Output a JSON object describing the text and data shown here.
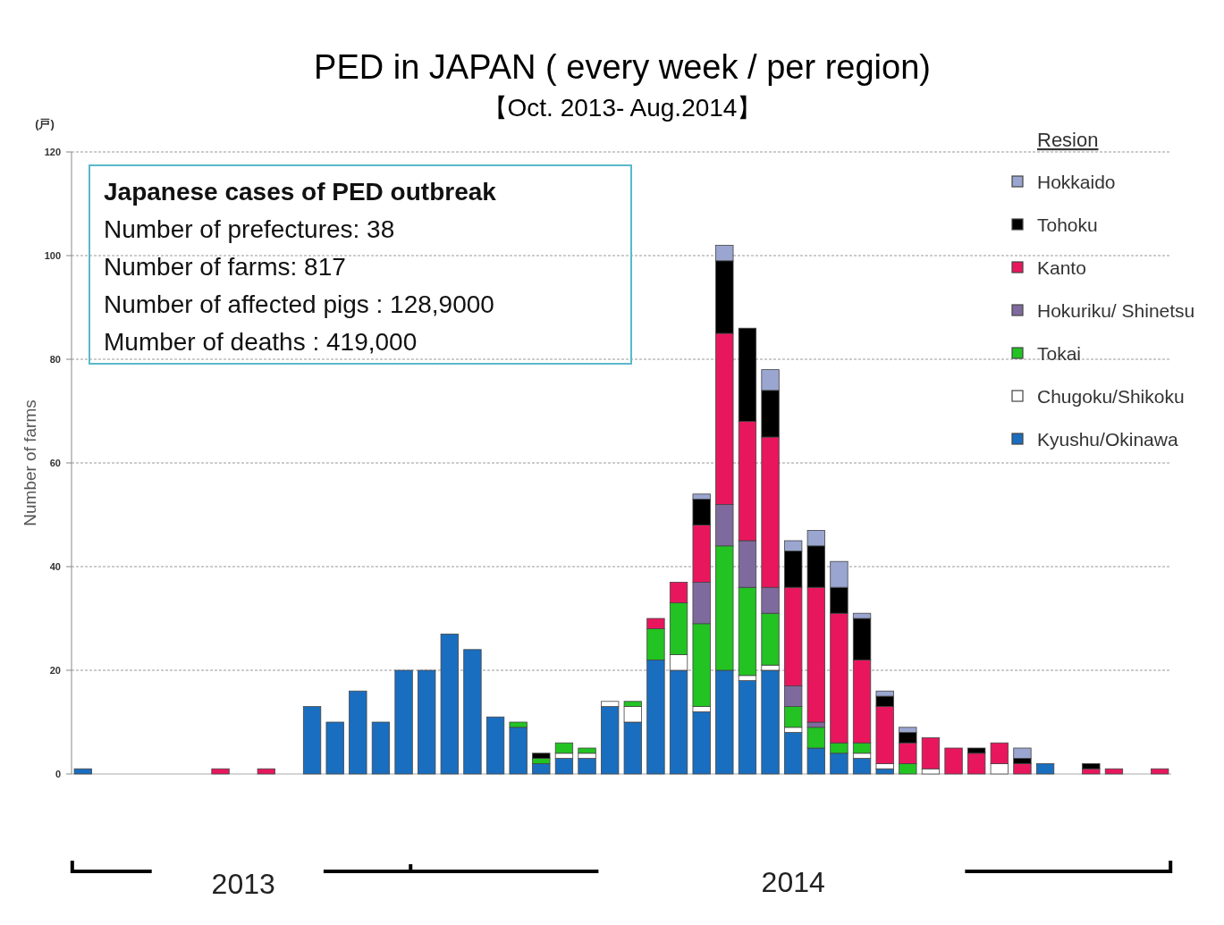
{
  "chart_data": {
    "type": "bar",
    "stacked": true,
    "title": "PED in JAPAN ( every week / per region)",
    "subtitle": "【Oct. 2013- Aug.2014】",
    "ylabel": "Number of farms",
    "legend_title": "Resion",
    "annotations": [
      "(戸)",
      "Japanese cases of PED outbreak",
      "Number of  prefectures: 38",
      "Number of farms: 817",
      "Number of affected pigs : 128,9000",
      "Mumber of deaths :  419,000",
      "2013",
      "2014"
    ],
    "categories": [
      null,
      null,
      null,
      null,
      null,
      null,
      null,
      null,
      null,
      null,
      null,
      null,
      null,
      null,
      null,
      null,
      null,
      null,
      null,
      null,
      null,
      null,
      null,
      null,
      null,
      null,
      null,
      null,
      null,
      null,
      null,
      null,
      null,
      null,
      null,
      null,
      null,
      null,
      null,
      null,
      null,
      null,
      null,
      null,
      null,
      null,
      null,
      null
    ],
    "series": [
      {
        "name": "Kyushu/Okinawa",
        "color": "#1a6ec0",
        "values": [
          1,
          0,
          0,
          0,
          0,
          0,
          0,
          0,
          0,
          0,
          13,
          10,
          16,
          10,
          20,
          20,
          27,
          24,
          11,
          9,
          2,
          3,
          3,
          13,
          10,
          22,
          20,
          12,
          20,
          18,
          20,
          8,
          5,
          4,
          3,
          1,
          0,
          0,
          0,
          0,
          0,
          0,
          2,
          0,
          0,
          0,
          0,
          0
        ]
      },
      {
        "name": "Chugoku/Shikoku",
        "color": "#ffffff",
        "values": [
          0,
          0,
          0,
          0,
          0,
          0,
          0,
          0,
          0,
          0,
          0,
          0,
          0,
          0,
          0,
          0,
          0,
          0,
          0,
          0,
          0,
          1,
          1,
          1,
          3,
          0,
          3,
          1,
          0,
          1,
          1,
          1,
          0,
          0,
          1,
          1,
          0,
          1,
          0,
          0,
          2,
          0,
          0,
          0,
          0,
          0,
          0,
          0
        ]
      },
      {
        "name": "Tokai",
        "color": "#22c322",
        "values": [
          0,
          0,
          0,
          0,
          0,
          0,
          0,
          0,
          0,
          0,
          0,
          0,
          0,
          0,
          0,
          0,
          0,
          0,
          0,
          1,
          1,
          2,
          1,
          0,
          1,
          6,
          10,
          16,
          24,
          17,
          10,
          4,
          4,
          2,
          2,
          0,
          2,
          0,
          0,
          0,
          0,
          0,
          0,
          0,
          0,
          0,
          0,
          0
        ]
      },
      {
        "name": "Hokuriku/ Shinetsu",
        "color": "#7f6a9e",
        "values": [
          0,
          0,
          0,
          0,
          0,
          0,
          0,
          0,
          0,
          0,
          0,
          0,
          0,
          0,
          0,
          0,
          0,
          0,
          0,
          0,
          0,
          0,
          0,
          0,
          0,
          0,
          0,
          8,
          8,
          9,
          5,
          4,
          1,
          0,
          0,
          0,
          0,
          0,
          0,
          0,
          0,
          0,
          0,
          0,
          0,
          0,
          0,
          0
        ]
      },
      {
        "name": "Kanto",
        "color": "#e8175d",
        "values": [
          0,
          0,
          0,
          0,
          0,
          0,
          1,
          0,
          1,
          0,
          0,
          0,
          0,
          0,
          0,
          0,
          0,
          0,
          0,
          0,
          0,
          0,
          0,
          0,
          0,
          2,
          4,
          11,
          33,
          23,
          29,
          19,
          26,
          25,
          16,
          11,
          4,
          6,
          5,
          4,
          4,
          2,
          0,
          0,
          1,
          1,
          0,
          1
        ]
      },
      {
        "name": "Tohoku",
        "color": "#000000",
        "values": [
          0,
          0,
          0,
          0,
          0,
          0,
          0,
          0,
          0,
          0,
          0,
          0,
          0,
          0,
          0,
          0,
          0,
          0,
          0,
          0,
          1,
          0,
          0,
          0,
          0,
          0,
          0,
          5,
          14,
          18,
          9,
          7,
          8,
          5,
          8,
          2,
          2,
          0,
          0,
          1,
          0,
          1,
          0,
          0,
          1,
          0,
          0,
          0
        ]
      },
      {
        "name": "Hokkaido",
        "color": "#9aa6d0",
        "values": [
          0,
          0,
          0,
          0,
          0,
          0,
          0,
          0,
          0,
          0,
          0,
          0,
          0,
          0,
          0,
          0,
          0,
          0,
          0,
          0,
          0,
          0,
          0,
          0,
          0,
          0,
          0,
          1,
          3,
          0,
          4,
          2,
          3,
          5,
          1,
          1,
          1,
          0,
          0,
          0,
          0,
          2,
          0,
          0,
          0,
          0,
          0,
          0
        ]
      }
    ],
    "ylim": [
      0,
      120
    ],
    "yticks": [
      0,
      20,
      40,
      60,
      80,
      100,
      120
    ],
    "grid": "y",
    "legend": "right"
  }
}
